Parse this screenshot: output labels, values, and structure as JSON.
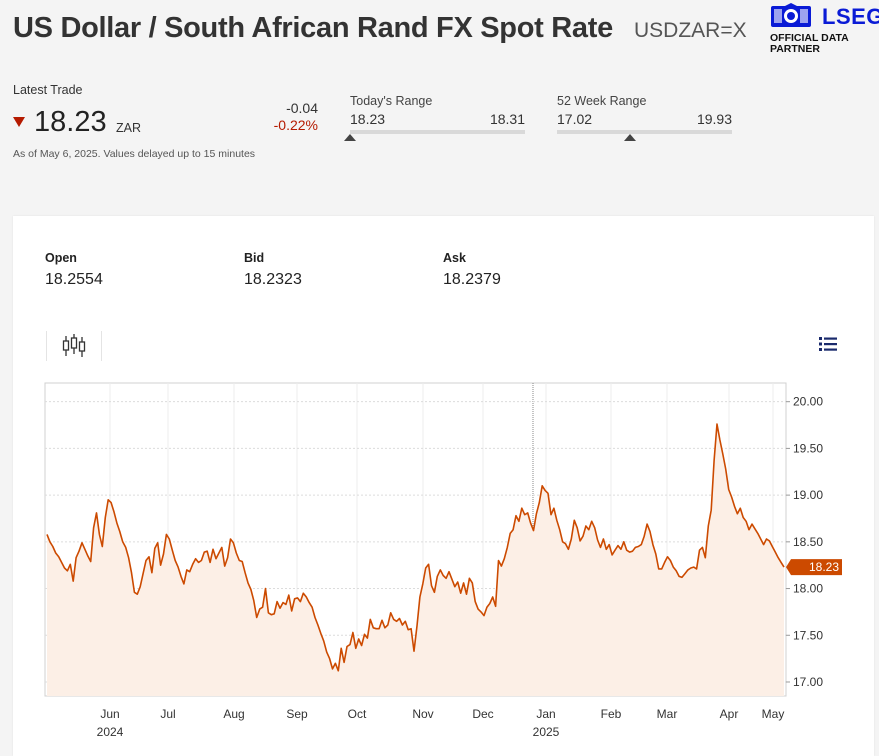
{
  "header": {
    "title": "US Dollar / South African Rand FX Spot Rate",
    "ticker": "USDZAR=X",
    "partner_brand": "LSEG",
    "partner_line1": "OFFICIAL DATA",
    "partner_line2": "PARTNER"
  },
  "quote": {
    "latest_label": "Latest Trade",
    "price": "18.23",
    "unit": "ZAR",
    "change": "-0.04",
    "change_pct": "-0.22%",
    "as_of": "As of May 6, 2025. Values delayed up to 15 minutes",
    "direction": "down",
    "down_color": "#b51a00"
  },
  "todays_range": {
    "label": "Today's Range",
    "low": "18.23",
    "high": "18.31",
    "position": 0.0
  },
  "week52_range": {
    "label": "52 Week Range",
    "low": "17.02",
    "high": "19.93",
    "position": 0.415
  },
  "stats": [
    {
      "label": "Open",
      "value": "18.2554"
    },
    {
      "label": "Bid",
      "value": "18.2323"
    },
    {
      "label": "Ask",
      "value": "18.2379"
    }
  ],
  "toolbar": {
    "candle_icon": "candlestick-chart-icon",
    "list_icon": "list-view-icon"
  },
  "chart_data": {
    "type": "area",
    "ylim": [
      16.85,
      20.2
    ],
    "yticks": [
      "20.00",
      "19.50",
      "19.00",
      "18.50",
      "18.00",
      "17.50",
      "17.00"
    ],
    "x_labels": [
      "Jun",
      "Jul",
      "Aug",
      "Sep",
      "Oct",
      "Nov",
      "Dec",
      "Jan",
      "Feb",
      "Mar",
      "Apr",
      "May"
    ],
    "year_labels": [
      "2024",
      "2025"
    ],
    "last_value_label": "18.23",
    "line_color": "#cc4a00",
    "fill_color": "#fcefe6",
    "series": [
      {
        "values": [
          18.58,
          18.5,
          18.45,
          18.38,
          18.34,
          18.28,
          18.22,
          18.19,
          18.26,
          18.08,
          18.33,
          18.4,
          18.49,
          18.42,
          18.35,
          18.29,
          18.65,
          18.81,
          18.58,
          18.45,
          18.76,
          18.95,
          18.92,
          18.82,
          18.7,
          18.61,
          18.5,
          18.44,
          18.33,
          18.17,
          17.96,
          17.94,
          18.02,
          18.16,
          18.3,
          18.34,
          18.17,
          18.43,
          18.49,
          18.25,
          18.37,
          18.58,
          18.53,
          18.41,
          18.3,
          18.23,
          18.13,
          18.05,
          18.2,
          18.18,
          18.26,
          18.32,
          18.28,
          18.3,
          18.39,
          18.4,
          18.28,
          18.42,
          18.32,
          18.38,
          18.44,
          18.24,
          18.33,
          18.53,
          18.49,
          18.38,
          18.3,
          18.29,
          18.17,
          18.06,
          17.99,
          17.87,
          17.69,
          17.78,
          17.8,
          18.0,
          17.74,
          17.72,
          17.73,
          17.86,
          17.79,
          17.85,
          17.83,
          17.93,
          17.76,
          17.89,
          17.9,
          17.86,
          17.95,
          17.91,
          17.85,
          17.8,
          17.69,
          17.61,
          17.52,
          17.44,
          17.32,
          17.25,
          17.14,
          17.2,
          17.12,
          17.36,
          17.21,
          17.38,
          17.4,
          17.53,
          17.36,
          17.46,
          17.39,
          17.51,
          17.47,
          17.67,
          17.58,
          17.57,
          17.57,
          17.66,
          17.58,
          17.61,
          17.74,
          17.67,
          17.65,
          17.68,
          17.61,
          17.65,
          17.56,
          17.57,
          17.33,
          17.6,
          17.91,
          18.05,
          18.22,
          18.26,
          18.03,
          17.96,
          18.13,
          18.2,
          18.14,
          18.11,
          18.18,
          18.1,
          18.02,
          18.07,
          17.95,
          18.06,
          17.94,
          18.11,
          18.06,
          17.86,
          17.78,
          17.75,
          17.71,
          17.8,
          17.84,
          17.91,
          17.81,
          18.3,
          18.24,
          18.32,
          18.44,
          18.59,
          18.63,
          18.78,
          18.72,
          18.86,
          18.79,
          18.81,
          18.7,
          18.62,
          18.8,
          18.92,
          19.1,
          19.05,
          19.02,
          18.79,
          18.86,
          18.73,
          18.63,
          18.5,
          18.48,
          18.42,
          18.53,
          18.73,
          18.65,
          18.51,
          18.56,
          18.67,
          18.63,
          18.72,
          18.65,
          18.52,
          18.44,
          18.53,
          18.42,
          18.47,
          18.36,
          18.41,
          18.46,
          18.42,
          18.5,
          18.41,
          18.39,
          18.4,
          18.44,
          18.45,
          18.47,
          18.56,
          18.69,
          18.61,
          18.47,
          18.37,
          18.21,
          18.21,
          18.28,
          18.34,
          18.3,
          18.23,
          18.19,
          18.13,
          18.12,
          18.16,
          18.2,
          18.22,
          18.23,
          18.21,
          18.41,
          18.44,
          18.33,
          18.67,
          18.84,
          19.37,
          19.76,
          19.59,
          19.44,
          19.28,
          19.06,
          18.98,
          18.88,
          18.8,
          18.86,
          18.76,
          18.72,
          18.63,
          18.69,
          18.64,
          18.59,
          18.53,
          18.47,
          18.53,
          18.51,
          18.45,
          18.39,
          18.33,
          18.28,
          18.23
        ]
      }
    ]
  }
}
